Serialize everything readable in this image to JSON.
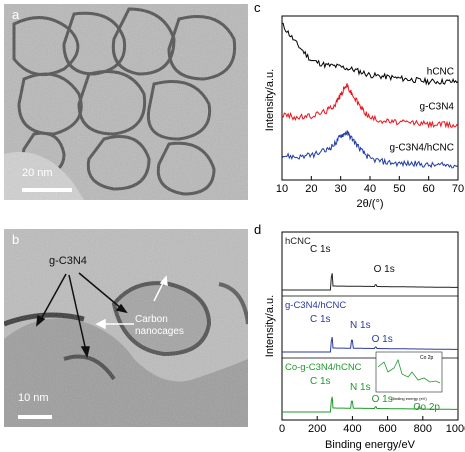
{
  "panels": {
    "a": {
      "label": "a",
      "scale_bar": "20 nm"
    },
    "b": {
      "label": "b",
      "scale_bar": "10 nm",
      "annotation_gcn": "g-C3N4",
      "annotation_carbon_line1": "Carbon",
      "annotation_carbon_line2": "nanocages"
    },
    "c": {
      "label": "c"
    },
    "d": {
      "label": "d",
      "inset_xlabel": "Binding energy (eV)",
      "inset_label": "Co 2p"
    }
  },
  "chart_data": [
    {
      "type": "line",
      "panel": "c",
      "xlabel": "2θ/(°)",
      "ylabel": "Intensity/a.u.",
      "xlim": [
        10,
        70
      ],
      "xticks": [
        10,
        20,
        30,
        40,
        50,
        60,
        70
      ],
      "series": [
        {
          "name": "hCNC",
          "color": "#000000",
          "x": [
            10,
            15,
            20,
            25,
            30,
            35,
            40,
            45,
            50,
            55,
            60,
            65,
            70
          ],
          "y": [
            0.95,
            0.83,
            0.73,
            0.7,
            0.69,
            0.67,
            0.64,
            0.63,
            0.62,
            0.61,
            0.6,
            0.6,
            0.6
          ]
        },
        {
          "name": "g-C3N4",
          "color": "#e8141c",
          "x": [
            10,
            15,
            20,
            25,
            28,
            30,
            32,
            34,
            37,
            40,
            45,
            50,
            55,
            60,
            65,
            70
          ],
          "y": [
            0.4,
            0.38,
            0.39,
            0.42,
            0.46,
            0.52,
            0.58,
            0.52,
            0.44,
            0.38,
            0.36,
            0.35,
            0.35,
            0.34,
            0.34,
            0.33
          ]
        },
        {
          "name": "g-C3N4/hCNC",
          "color": "#1f3ea8",
          "x": [
            10,
            15,
            20,
            25,
            28,
            30,
            32,
            34,
            37,
            40,
            45,
            50,
            55,
            60,
            65,
            70
          ],
          "y": [
            0.15,
            0.14,
            0.15,
            0.18,
            0.22,
            0.27,
            0.29,
            0.25,
            0.18,
            0.13,
            0.11,
            0.1,
            0.1,
            0.09,
            0.09,
            0.09
          ]
        }
      ]
    },
    {
      "type": "line",
      "panel": "d",
      "xlabel": "Binding energy/eV",
      "ylabel": "Intensity/a.u.",
      "xlim": [
        0,
        1000
      ],
      "xticks": [
        0,
        200,
        400,
        600,
        800,
        1000
      ],
      "series": [
        {
          "name": "hCNC",
          "color": "#222222",
          "peaks": [
            {
              "label": "C 1s",
              "x": 284,
              "height": 0.85
            },
            {
              "label": "O 1s",
              "x": 532,
              "height": 0.12
            }
          ]
        },
        {
          "name": "g-C3N4/hCNC",
          "color": "#2a3a9e",
          "peaks": [
            {
              "label": "C 1s",
              "x": 284,
              "height": 0.75
            },
            {
              "label": "N 1s",
              "x": 398,
              "height": 0.55
            },
            {
              "label": "O 1s",
              "x": 532,
              "height": 0.1
            }
          ]
        },
        {
          "name": "Co-g-C3N4/hCNC",
          "color": "#1f9a2a",
          "peaks": [
            {
              "label": "C 1s",
              "x": 284,
              "height": 0.8
            },
            {
              "label": "N 1s",
              "x": 398,
              "height": 0.5
            },
            {
              "label": "O 1s",
              "x": 532,
              "height": 0.12
            },
            {
              "label": "Co 2p",
              "x": 780,
              "height": 0.06
            }
          ]
        }
      ]
    }
  ]
}
